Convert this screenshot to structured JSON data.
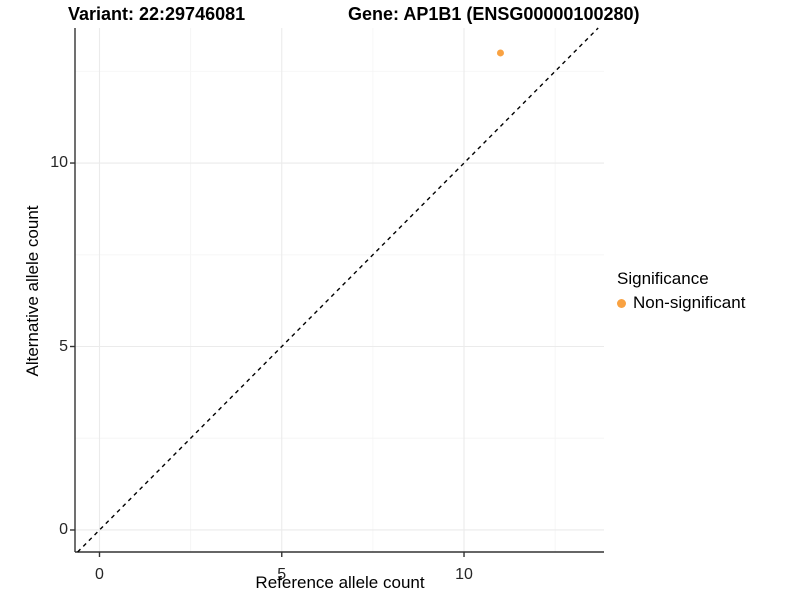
{
  "titles": {
    "variant": "Variant: 22:29746081",
    "gene": "Gene: AP1B1 (ENSG00000100280)"
  },
  "chart_data": {
    "type": "scatter",
    "xlabel": "Reference allele count",
    "ylabel": "Alternative allele count",
    "x_range": [
      -0.672,
      13.84
    ],
    "y_range": [
      -0.6,
      13.68
    ],
    "x_major_ticks": [
      0,
      5,
      10
    ],
    "y_major_ticks": [
      0,
      5,
      10
    ],
    "x_minor_gridlines": [
      2.5,
      7.5,
      12.5
    ],
    "y_minor_gridlines": [
      2.5,
      7.5,
      12.5
    ],
    "points": [
      {
        "x": 11,
        "y": 13,
        "series": "Non-significant"
      }
    ],
    "reference_line": {
      "slope": 1,
      "intercept": 0,
      "style": "dashed"
    },
    "grid": true,
    "legend_position": "right"
  },
  "legend": {
    "title": "Significance",
    "items": [
      {
        "label": "Non-significant",
        "color": "#F9A242"
      }
    ]
  },
  "colors": {
    "point": "#F9A242",
    "axis_line": "#333333",
    "tick_text": "#262626",
    "grid_major": "#EBEBEB",
    "grid_minor": "#F5F5F5",
    "dashed_line": "#000000",
    "background": "#FFFFFF"
  }
}
